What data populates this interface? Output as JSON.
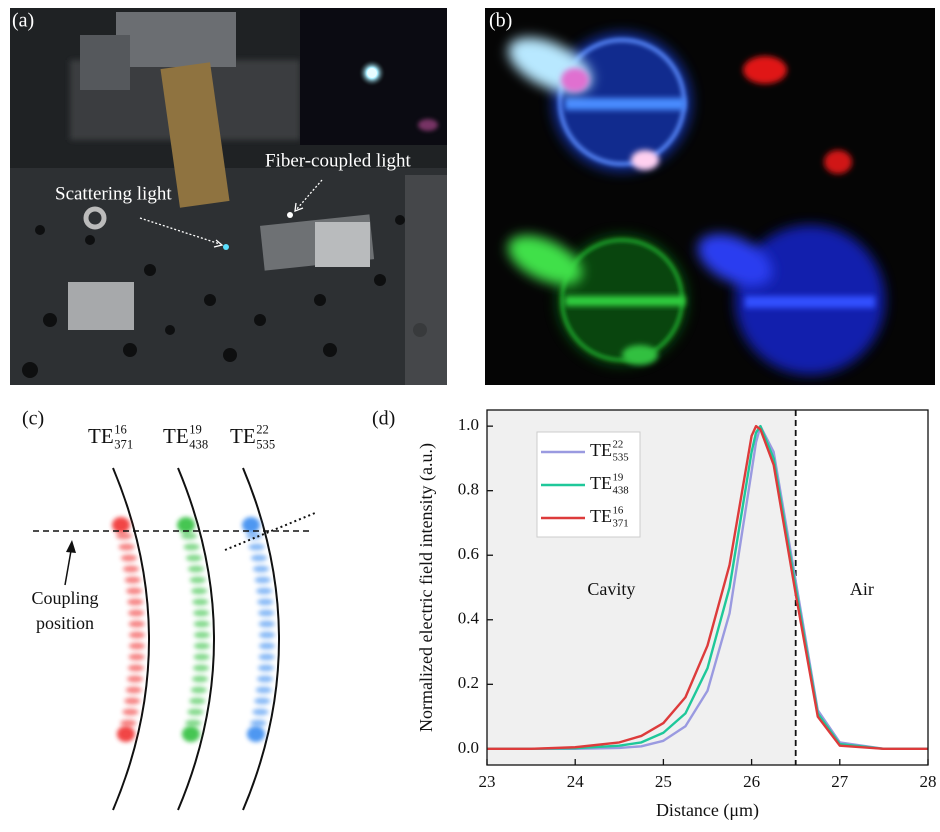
{
  "panels": {
    "a": {
      "label": "(a)",
      "annotations": [
        "Scattering light",
        "Fiber-coupled light"
      ]
    },
    "b": {
      "label": "(b)"
    },
    "c": {
      "label": "(c)",
      "modes": [
        {
          "base": "TE",
          "sup": "16",
          "sub": "371"
        },
        {
          "base": "TE",
          "sup": "19",
          "sub": "438"
        },
        {
          "base": "TE",
          "sup": "22",
          "sub": "535"
        }
      ],
      "annotation": [
        "Coupling",
        "position"
      ]
    }
  },
  "chart_data": {
    "type": "line",
    "label": "(d)",
    "x_label": "Distance (μm)",
    "y_label": "Normalized electric field intensity (a.u.)",
    "x": [
      23,
      23.5,
      24,
      24.5,
      24.75,
      25,
      25.25,
      25.5,
      25.75,
      26,
      26.05,
      26.1,
      26.25,
      26.5,
      26.75,
      27,
      27.5,
      28
    ],
    "series": [
      {
        "name": "TE",
        "sup": "22",
        "sub": "535",
        "color": "#9a9ae0",
        "values": [
          0,
          0,
          0,
          0.003,
          0.008,
          0.025,
          0.07,
          0.18,
          0.42,
          0.86,
          0.95,
          1.0,
          0.92,
          0.52,
          0.12,
          0.02,
          0,
          0
        ]
      },
      {
        "name": "TE",
        "sup": "19",
        "sub": "438",
        "color": "#1fc89a",
        "values": [
          0,
          0,
          0.002,
          0.01,
          0.02,
          0.05,
          0.11,
          0.25,
          0.5,
          0.92,
          0.98,
          1.0,
          0.9,
          0.5,
          0.11,
          0.015,
          0,
          0
        ]
      },
      {
        "name": "TE",
        "sup": "16",
        "sub": "371",
        "color": "#dd3b3b",
        "values": [
          0,
          0,
          0.005,
          0.02,
          0.04,
          0.08,
          0.16,
          0.32,
          0.57,
          0.97,
          1.0,
          0.99,
          0.88,
          0.48,
          0.1,
          0.01,
          0,
          0
        ]
      }
    ],
    "annotations": [
      "Cavity",
      "Air"
    ],
    "boundary": 26.5,
    "xlim": [
      23,
      28
    ],
    "ylim": [
      -0.05,
      1.05
    ],
    "xticks": [
      23,
      24,
      25,
      26,
      27,
      28
    ],
    "yticks": [
      {
        "value": 0,
        "label": "0.0"
      },
      0.2,
      0.4,
      0.6,
      0.8,
      {
        "value": 1,
        "label": "1.0"
      }
    ]
  }
}
